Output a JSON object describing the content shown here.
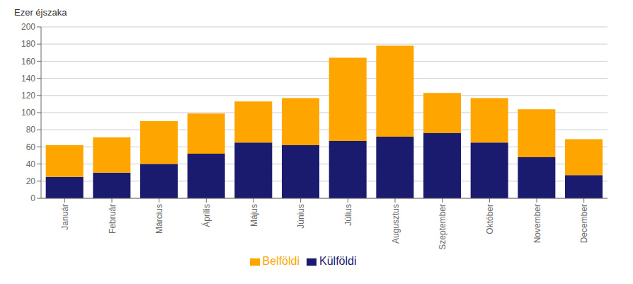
{
  "chart_data": {
    "type": "bar",
    "stacked": true,
    "ylabel": "Ezer éjszaka",
    "categories": [
      "Január",
      "Február",
      "Március",
      "Április",
      "Május",
      "Június",
      "Július",
      "Augusztus",
      "Szeptember",
      "Október",
      "November",
      "December"
    ],
    "series": [
      {
        "name": "Külföldi",
        "color": "#1a1a6e",
        "values": [
          25,
          30,
          40,
          52,
          65,
          62,
          67,
          72,
          76,
          65,
          48,
          27
        ]
      },
      {
        "name": "Belföldi",
        "color": "#ffa500",
        "values": [
          37,
          41,
          50,
          47,
          48,
          55,
          97,
          106,
          47,
          52,
          56,
          42
        ]
      }
    ],
    "ylim": [
      0,
      200
    ],
    "yticks": [
      0,
      20,
      40,
      60,
      80,
      100,
      120,
      140,
      160,
      180,
      200
    ],
    "grid": true,
    "legend": "bottom"
  }
}
